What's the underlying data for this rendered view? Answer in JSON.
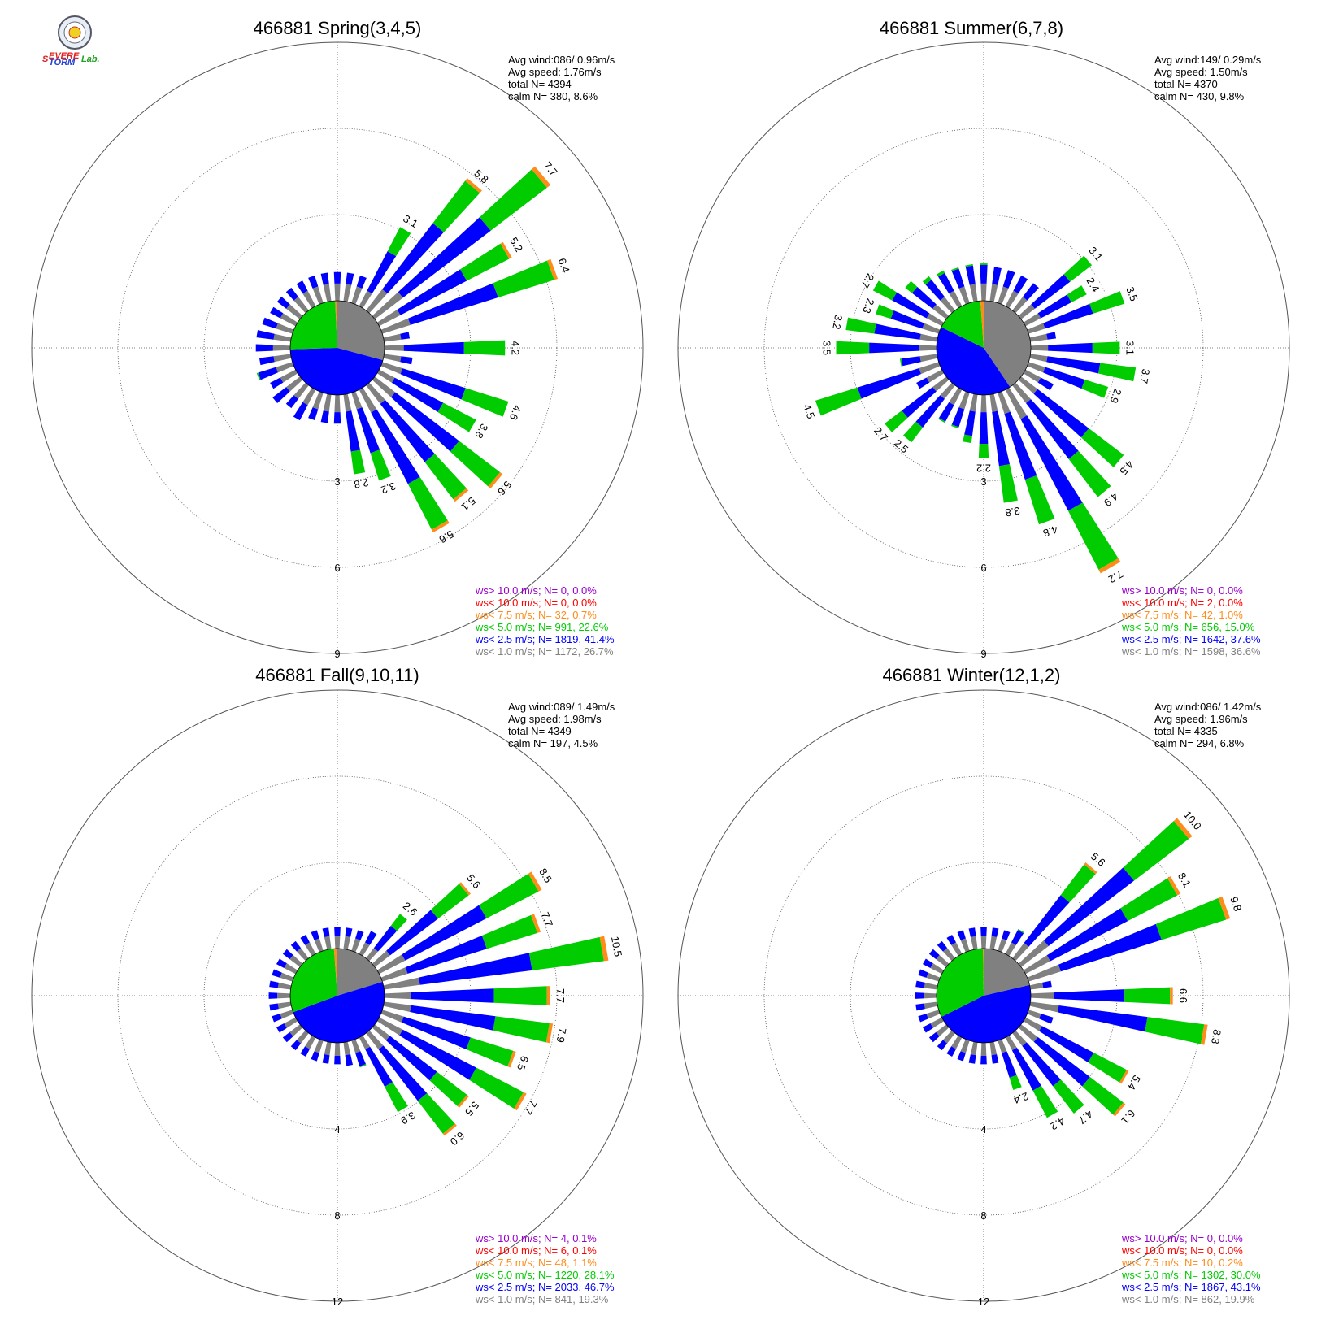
{
  "colors": {
    "gray": "#808080",
    "blue": "#0000ff",
    "green": "#00cc00",
    "orange": "#ff8c1a",
    "red": "#ff0000",
    "purple": "#9900cc",
    "grid": "#555555"
  },
  "logo": {
    "text": "SSevereStormLab."
  },
  "chart_data": [
    {
      "type": "windrose",
      "title": "466881 Spring(3,4,5)",
      "stats": {
        "avg_wind": "Avg wind:086/ 0.96m/s",
        "avg_speed": "Avg speed: 1.76m/s",
        "total": "total N=        4394",
        "calm": "calm N=     380,   8.6%"
      },
      "rings": [
        "3",
        "6",
        "9"
      ],
      "ring_values": [
        3,
        6,
        9
      ],
      "calm_pie": [
        {
          "label": "gray",
          "percent": 26.7
        },
        {
          "label": "blue",
          "percent": 41.4
        },
        {
          "label": "green",
          "percent": 22.6
        },
        {
          "label": "orange",
          "percent": 0.7
        }
      ],
      "legend": [
        {
          "class": "purple",
          "text": "ws> 10.0 m/s; N=       0,  0.0%"
        },
        {
          "class": "red",
          "text": "ws< 10.0 m/s; N=       0,  0.0%"
        },
        {
          "class": "orange",
          "text": "ws<  7.5 m/s; N=     32,  0.7%"
        },
        {
          "class": "green",
          "text": "ws<  5.0 m/s; N=   991, 22.6%"
        },
        {
          "class": "blue",
          "text": "ws<  2.5 m/s; N=  1819, 41.4%"
        },
        {
          "class": "gray",
          "text": "ws<  1.0 m/s; N=  1172, 26.7%"
        }
      ],
      "bars": [
        {
          "dir": 0,
          "total": 1.0,
          "label": ""
        },
        {
          "dir": 10,
          "total": 1.0,
          "label": ""
        },
        {
          "dir": 20,
          "total": 1.0,
          "label": ""
        },
        {
          "dir": 30,
          "total": 3.1,
          "label": "3.1"
        },
        {
          "dir": 40,
          "total": 5.8,
          "label": "5.8"
        },
        {
          "dir": 50,
          "total": 7.7,
          "label": "7.7"
        },
        {
          "dir": 60,
          "total": 5.2,
          "label": "5.2"
        },
        {
          "dir": 70,
          "total": 6.4,
          "label": "6.4"
        },
        {
          "dir": 80,
          "total": 0.9,
          "label": ""
        },
        {
          "dir": 90,
          "total": 4.2,
          "label": "4.2"
        },
        {
          "dir": 100,
          "total": 1.0,
          "label": ""
        },
        {
          "dir": 110,
          "total": 4.6,
          "label": "4.6"
        },
        {
          "dir": 120,
          "total": 3.8,
          "label": "3.8"
        },
        {
          "dir": 130,
          "total": 5.6,
          "label": "5.6"
        },
        {
          "dir": 140,
          "total": 5.1,
          "label": "5.1"
        },
        {
          "dir": 150,
          "total": 5.6,
          "label": "5.6"
        },
        {
          "dir": 160,
          "total": 3.2,
          "label": "3.2"
        },
        {
          "dir": 170,
          "total": 2.8,
          "label": "2.8"
        },
        {
          "dir": 180,
          "total": 1.0,
          "label": ""
        },
        {
          "dir": 190,
          "total": 1.0,
          "label": ""
        },
        {
          "dir": 200,
          "total": 1.0,
          "label": ""
        },
        {
          "dir": 210,
          "total": 1.2,
          "label": ""
        },
        {
          "dir": 220,
          "total": 1.0,
          "label": ""
        },
        {
          "dir": 230,
          "total": 1.2,
          "label": ""
        },
        {
          "dir": 240,
          "total": 1.0,
          "label": ""
        },
        {
          "dir": 250,
          "total": 1.3,
          "label": ""
        },
        {
          "dir": 260,
          "total": 1.1,
          "label": ""
        },
        {
          "dir": 270,
          "total": 1.2,
          "label": ""
        },
        {
          "dir": 280,
          "total": 1.2,
          "label": ""
        },
        {
          "dir": 290,
          "total": 1.1,
          "label": ""
        },
        {
          "dir": 300,
          "total": 1.0,
          "label": ""
        },
        {
          "dir": 310,
          "total": 1.0,
          "label": ""
        },
        {
          "dir": 320,
          "total": 1.0,
          "label": ""
        },
        {
          "dir": 330,
          "total": 1.0,
          "label": ""
        },
        {
          "dir": 340,
          "total": 1.0,
          "label": ""
        },
        {
          "dir": 350,
          "total": 1.0,
          "label": ""
        }
      ]
    },
    {
      "type": "windrose",
      "title": "466881 Summer(6,7,8)",
      "stats": {
        "avg_wind": "Avg wind:149/ 0.29m/s",
        "avg_speed": "Avg speed: 1.50m/s",
        "total": "total N=        4370",
        "calm": "calm N=     430,   9.8%"
      },
      "rings": [
        "3",
        "6",
        "9"
      ],
      "ring_values": [
        3,
        6,
        9
      ],
      "calm_pie": [
        {
          "label": "gray",
          "percent": 36.6
        },
        {
          "label": "blue",
          "percent": 37.6
        },
        {
          "label": "green",
          "percent": 15.0
        },
        {
          "label": "orange",
          "percent": 1.0
        }
      ],
      "legend": [
        {
          "class": "purple",
          "text": "ws> 10.0 m/s; N=       0,  0.0%"
        },
        {
          "class": "red",
          "text": "ws< 10.0 m/s; N=       2,  0.0%"
        },
        {
          "class": "orange",
          "text": "ws<  7.5 m/s; N=     42,  1.0%"
        },
        {
          "class": "green",
          "text": "ws<  5.0 m/s; N=   656, 15.0%"
        },
        {
          "class": "blue",
          "text": "ws<  2.5 m/s; N=  1642, 37.6%"
        },
        {
          "class": "gray",
          "text": "ws<  1.0 m/s; N=  1598, 36.6%"
        }
      ],
      "bars": [
        {
          "dir": 0,
          "total": 1.3,
          "label": ""
        },
        {
          "dir": 10,
          "total": 1.2,
          "label": ""
        },
        {
          "dir": 20,
          "total": 1.2,
          "label": ""
        },
        {
          "dir": 30,
          "total": 1.2,
          "label": ""
        },
        {
          "dir": 40,
          "total": 1.2,
          "label": ""
        },
        {
          "dir": 50,
          "total": 3.1,
          "label": "3.1"
        },
        {
          "dir": 60,
          "total": 2.4,
          "label": "2.4"
        },
        {
          "dir": 70,
          "total": 3.5,
          "label": "3.5"
        },
        {
          "dir": 80,
          "total": 0.9,
          "label": ""
        },
        {
          "dir": 90,
          "total": 3.1,
          "label": "3.1"
        },
        {
          "dir": 100,
          "total": 3.7,
          "label": "3.7"
        },
        {
          "dir": 110,
          "total": 2.9,
          "label": "2.9"
        },
        {
          "dir": 120,
          "total": 1.1,
          "label": ""
        },
        {
          "dir": 130,
          "total": 4.5,
          "label": "4.5"
        },
        {
          "dir": 140,
          "total": 4.9,
          "label": "4.9"
        },
        {
          "dir": 150,
          "total": 7.2,
          "label": "7.2"
        },
        {
          "dir": 160,
          "total": 4.8,
          "label": "4.8"
        },
        {
          "dir": 170,
          "total": 3.8,
          "label": "3.8"
        },
        {
          "dir": 180,
          "total": 2.2,
          "label": "2.2"
        },
        {
          "dir": 190,
          "total": 1.7,
          "label": ""
        },
        {
          "dir": 200,
          "total": 1.3,
          "label": ""
        },
        {
          "dir": 210,
          "total": 1.3,
          "label": ""
        },
        {
          "dir": 220,
          "total": 2.5,
          "label": "2.5"
        },
        {
          "dir": 230,
          "total": 2.7,
          "label": "2.7"
        },
        {
          "dir": 240,
          "total": 1.0,
          "label": ""
        },
        {
          "dir": 250,
          "total": 4.5,
          "label": "4.5"
        },
        {
          "dir": 260,
          "total": 1.3,
          "label": ""
        },
        {
          "dir": 270,
          "total": 3.5,
          "label": "3.5"
        },
        {
          "dir": 280,
          "total": 3.2,
          "label": "3.2"
        },
        {
          "dir": 290,
          "total": 2.3,
          "label": "2.3"
        },
        {
          "dir": 300,
          "total": 2.7,
          "label": "2.7"
        },
        {
          "dir": 310,
          "total": 1.8,
          "label": ""
        },
        {
          "dir": 320,
          "total": 1.5,
          "label": ""
        },
        {
          "dir": 330,
          "total": 1.4,
          "label": ""
        },
        {
          "dir": 340,
          "total": 1.3,
          "label": ""
        },
        {
          "dir": 350,
          "total": 1.3,
          "label": ""
        }
      ]
    },
    {
      "type": "windrose",
      "title": "466881 Fall(9,10,11)",
      "stats": {
        "avg_wind": "Avg wind:089/ 1.49m/s",
        "avg_speed": "Avg speed: 1.98m/s",
        "total": "total N=        4349",
        "calm": "calm N=     197,   4.5%"
      },
      "rings": [
        "4",
        "8",
        "12"
      ],
      "ring_values": [
        4,
        8,
        12
      ],
      "calm_pie": [
        {
          "label": "gray",
          "percent": 19.3
        },
        {
          "label": "blue",
          "percent": 46.7
        },
        {
          "label": "green",
          "percent": 28.1
        },
        {
          "label": "orange",
          "percent": 1.1
        }
      ],
      "legend": [
        {
          "class": "purple",
          "text": "ws> 10.0 m/s; N=       4,  0.1%"
        },
        {
          "class": "red",
          "text": "ws< 10.0 m/s; N=       6,  0.1%"
        },
        {
          "class": "orange",
          "text": "ws<  7.5 m/s; N=     48,  1.1%"
        },
        {
          "class": "green",
          "text": "ws<  5.0 m/s; N=  1220, 28.1%"
        },
        {
          "class": "blue",
          "text": "ws<  2.5 m/s; N=  2033, 46.7%"
        },
        {
          "class": "gray",
          "text": "ws<  1.0 m/s; N=    841, 19.3%"
        }
      ],
      "bars": [
        {
          "dir": 0,
          "total": 1.0,
          "label": ""
        },
        {
          "dir": 10,
          "total": 1.0,
          "label": ""
        },
        {
          "dir": 20,
          "total": 1.0,
          "label": ""
        },
        {
          "dir": 30,
          "total": 1.2,
          "label": ""
        },
        {
          "dir": 40,
          "total": 2.6,
          "label": "2.6"
        },
        {
          "dir": 50,
          "total": 5.6,
          "label": "5.6"
        },
        {
          "dir": 60,
          "total": 8.5,
          "label": "8.5"
        },
        {
          "dir": 70,
          "total": 7.7,
          "label": "7.7"
        },
        {
          "dir": 80,
          "total": 10.5,
          "label": "10.5"
        },
        {
          "dir": 90,
          "total": 7.7,
          "label": "7.7"
        },
        {
          "dir": 100,
          "total": 7.9,
          "label": "7.9"
        },
        {
          "dir": 110,
          "total": 6.5,
          "label": "6.5"
        },
        {
          "dir": 120,
          "total": 7.7,
          "label": "7.7"
        },
        {
          "dir": 130,
          "total": 5.5,
          "label": "5.5"
        },
        {
          "dir": 140,
          "total": 6.0,
          "label": "6.0"
        },
        {
          "dir": 150,
          "total": 3.9,
          "label": "3.9"
        },
        {
          "dir": 160,
          "total": 1.3,
          "label": ""
        },
        {
          "dir": 170,
          "total": 1.1,
          "label": ""
        },
        {
          "dir": 180,
          "total": 1.0,
          "label": ""
        },
        {
          "dir": 190,
          "total": 1.0,
          "label": ""
        },
        {
          "dir": 200,
          "total": 1.0,
          "label": ""
        },
        {
          "dir": 210,
          "total": 1.0,
          "label": ""
        },
        {
          "dir": 220,
          "total": 1.0,
          "label": ""
        },
        {
          "dir": 230,
          "total": 1.0,
          "label": ""
        },
        {
          "dir": 240,
          "total": 1.0,
          "label": ""
        },
        {
          "dir": 250,
          "total": 1.0,
          "label": ""
        },
        {
          "dir": 260,
          "total": 1.0,
          "label": ""
        },
        {
          "dir": 270,
          "total": 1.0,
          "label": ""
        },
        {
          "dir": 280,
          "total": 1.0,
          "label": ""
        },
        {
          "dir": 290,
          "total": 1.0,
          "label": ""
        },
        {
          "dir": 300,
          "total": 1.0,
          "label": ""
        },
        {
          "dir": 310,
          "total": 1.0,
          "label": ""
        },
        {
          "dir": 320,
          "total": 1.0,
          "label": ""
        },
        {
          "dir": 330,
          "total": 1.0,
          "label": ""
        },
        {
          "dir": 340,
          "total": 1.0,
          "label": ""
        },
        {
          "dir": 350,
          "total": 1.0,
          "label": ""
        }
      ]
    },
    {
      "type": "windrose",
      "title": "466881 Winter(12,1,2)",
      "stats": {
        "avg_wind": "Avg wind:086/ 1.42m/s",
        "avg_speed": "Avg speed: 1.96m/s",
        "total": "total N=        4335",
        "calm": "calm N=     294,   6.8%"
      },
      "rings": [
        "4",
        "8",
        "12"
      ],
      "ring_values": [
        4,
        8,
        12
      ],
      "calm_pie": [
        {
          "label": "gray",
          "percent": 19.9
        },
        {
          "label": "blue",
          "percent": 43.1
        },
        {
          "label": "green",
          "percent": 30.0
        },
        {
          "label": "orange",
          "percent": 0.2
        }
      ],
      "legend": [
        {
          "class": "purple",
          "text": "ws> 10.0 m/s; N=       0,  0.0%"
        },
        {
          "class": "red",
          "text": "ws< 10.0 m/s; N=       0,  0.0%"
        },
        {
          "class": "orange",
          "text": "ws<  7.5 m/s; N=     10,  0.2%"
        },
        {
          "class": "green",
          "text": "ws<  5.0 m/s; N=  1302, 30.0%"
        },
        {
          "class": "blue",
          "text": "ws<  2.5 m/s; N=  1867, 43.1%"
        },
        {
          "class": "gray",
          "text": "ws<  1.0 m/s; N=    862, 19.9%"
        }
      ],
      "bars": [
        {
          "dir": 0,
          "total": 1.0,
          "label": ""
        },
        {
          "dir": 10,
          "total": 1.0,
          "label": ""
        },
        {
          "dir": 20,
          "total": 1.0,
          "label": ""
        },
        {
          "dir": 30,
          "total": 1.3,
          "label": ""
        },
        {
          "dir": 40,
          "total": 5.6,
          "label": "5.6"
        },
        {
          "dir": 50,
          "total": 10.0,
          "label": "10.0"
        },
        {
          "dir": 60,
          "total": 8.1,
          "label": "8.1"
        },
        {
          "dir": 70,
          "total": 9.8,
          "label": "9.8"
        },
        {
          "dir": 80,
          "total": 1.0,
          "label": ""
        },
        {
          "dir": 90,
          "total": 6.6,
          "label": "6.6"
        },
        {
          "dir": 100,
          "total": 8.3,
          "label": "8.3"
        },
        {
          "dir": 110,
          "total": 1.2,
          "label": ""
        },
        {
          "dir": 120,
          "total": 5.4,
          "label": "5.4"
        },
        {
          "dir": 130,
          "total": 6.1,
          "label": "6.1"
        },
        {
          "dir": 140,
          "total": 4.7,
          "label": "4.7"
        },
        {
          "dir": 150,
          "total": 4.2,
          "label": "4.2"
        },
        {
          "dir": 160,
          "total": 2.4,
          "label": "2.4"
        },
        {
          "dir": 170,
          "total": 1.0,
          "label": ""
        },
        {
          "dir": 180,
          "total": 1.0,
          "label": ""
        },
        {
          "dir": 190,
          "total": 1.0,
          "label": ""
        },
        {
          "dir": 200,
          "total": 1.0,
          "label": ""
        },
        {
          "dir": 210,
          "total": 1.0,
          "label": ""
        },
        {
          "dir": 220,
          "total": 1.0,
          "label": ""
        },
        {
          "dir": 230,
          "total": 1.0,
          "label": ""
        },
        {
          "dir": 240,
          "total": 1.0,
          "label": ""
        },
        {
          "dir": 250,
          "total": 1.0,
          "label": ""
        },
        {
          "dir": 260,
          "total": 1.0,
          "label": ""
        },
        {
          "dir": 270,
          "total": 1.0,
          "label": ""
        },
        {
          "dir": 280,
          "total": 1.0,
          "label": ""
        },
        {
          "dir": 290,
          "total": 1.0,
          "label": ""
        },
        {
          "dir": 300,
          "total": 1.0,
          "label": ""
        },
        {
          "dir": 310,
          "total": 1.0,
          "label": ""
        },
        {
          "dir": 320,
          "total": 1.0,
          "label": ""
        },
        {
          "dir": 330,
          "total": 1.0,
          "label": ""
        },
        {
          "dir": 340,
          "total": 1.0,
          "label": ""
        },
        {
          "dir": 350,
          "total": 1.0,
          "label": ""
        }
      ]
    }
  ]
}
